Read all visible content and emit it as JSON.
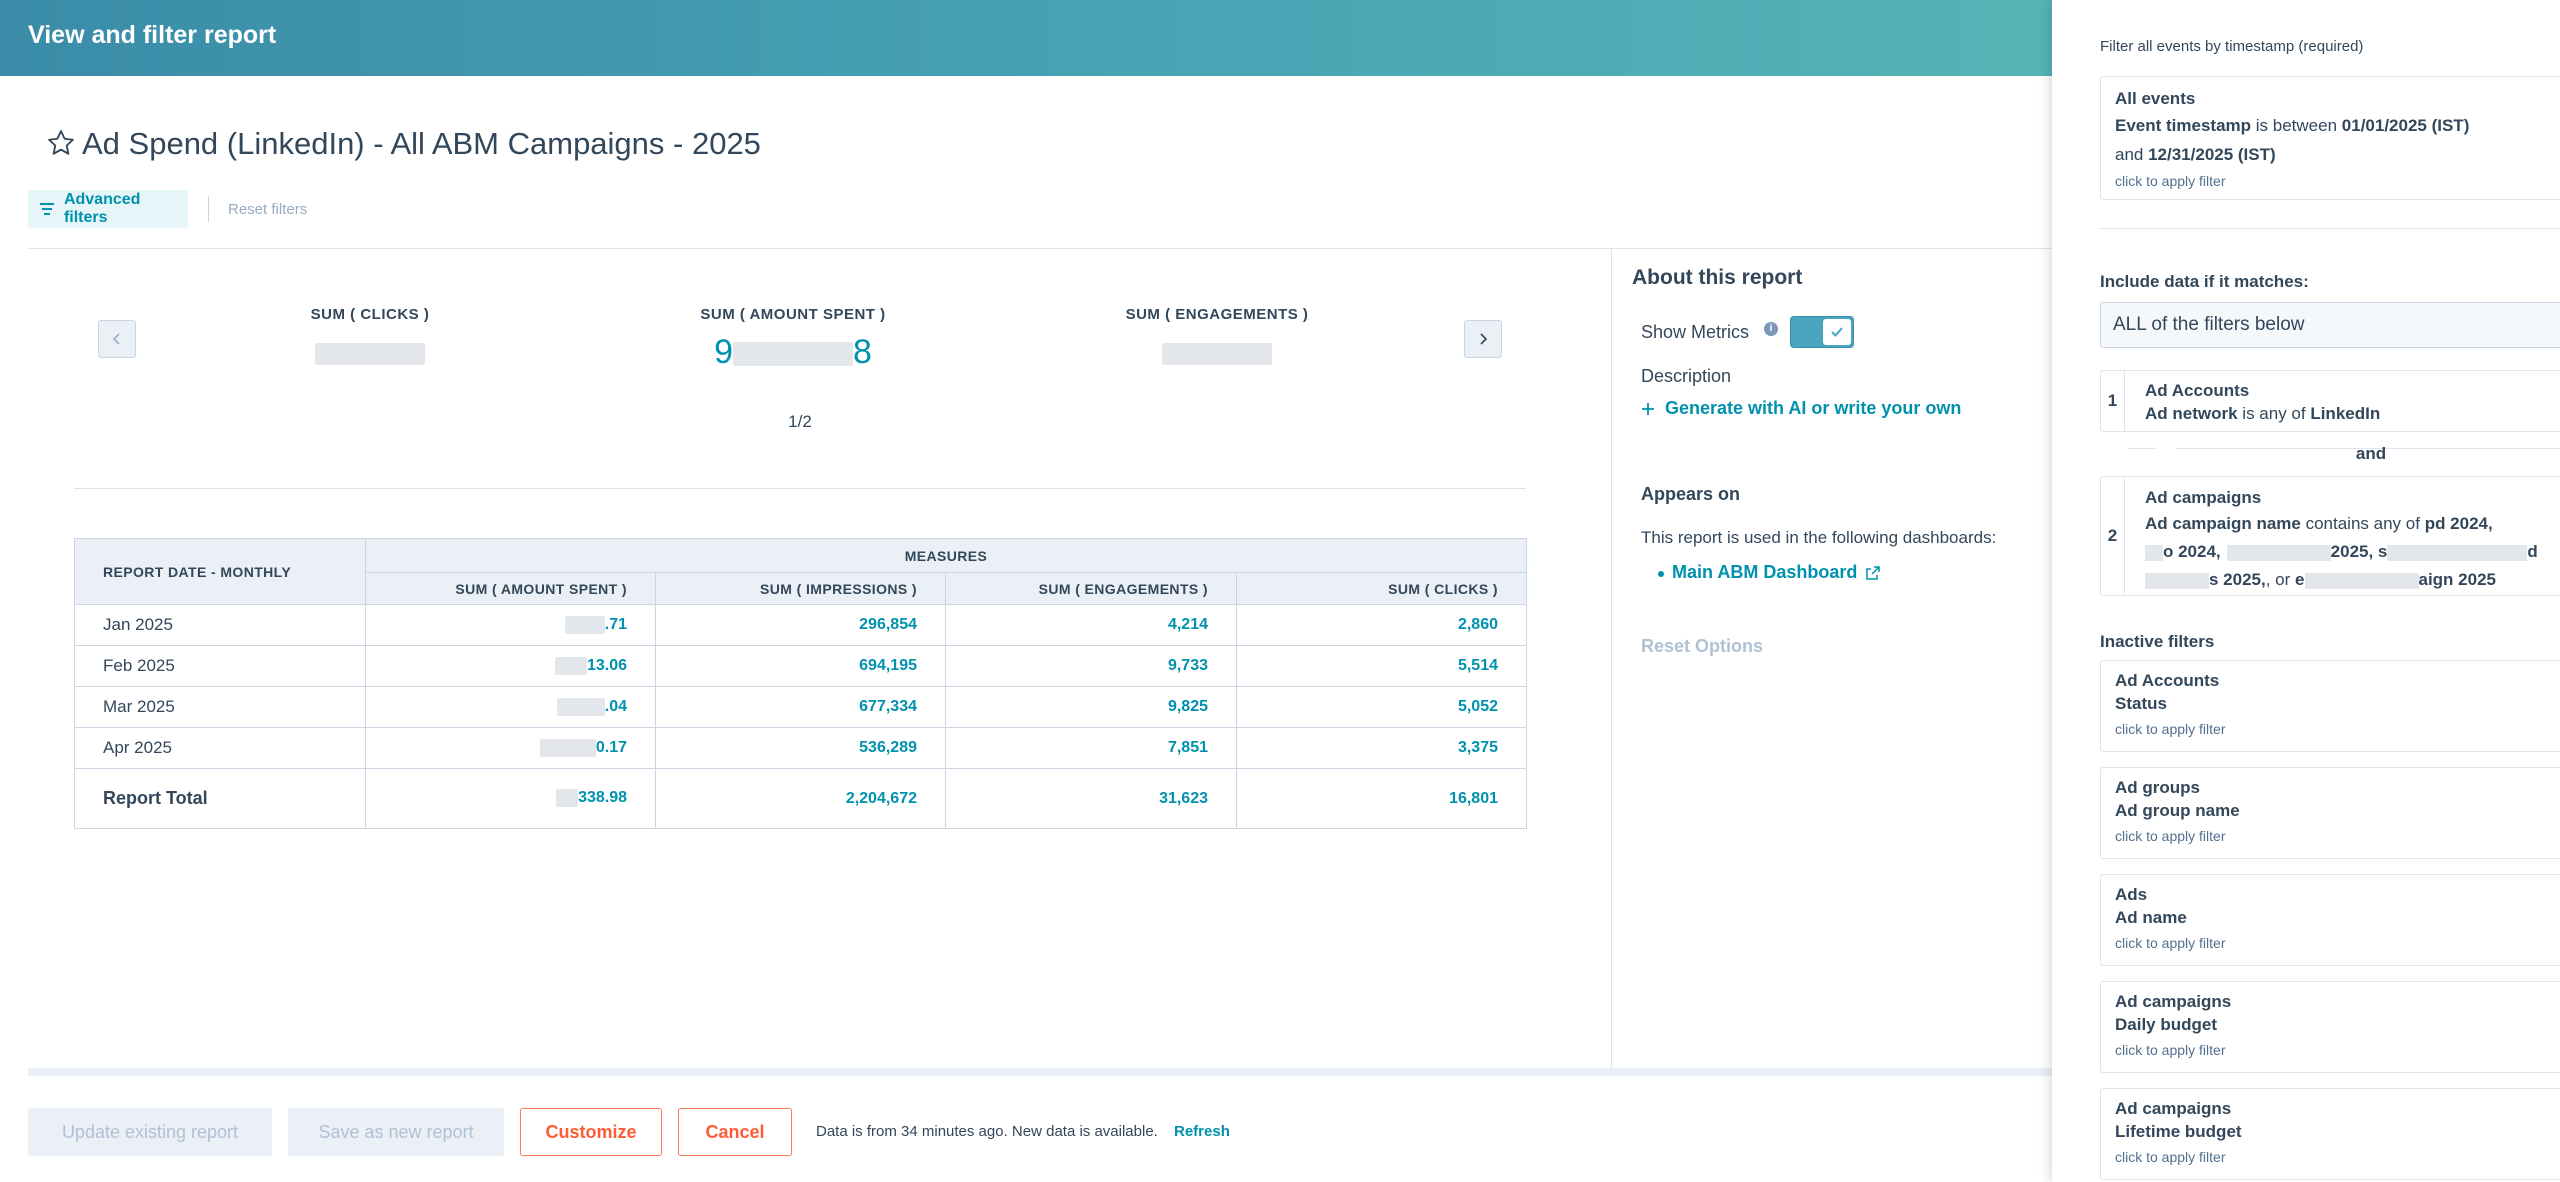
{
  "header": {
    "title": "View and filter report"
  },
  "report": {
    "title": "Ad Spend (LinkedIn) - All ABM Campaigns - 2025",
    "advanced_filters": "Advanced filters",
    "reset_filters": "Reset filters"
  },
  "kpis": [
    {
      "label": "SUM ( CLICKS )"
    },
    {
      "label": "SUM ( AMOUNT SPENT )",
      "value_visible_prefix": "9",
      "value_visible_suffix": "8"
    },
    {
      "label": "SUM ( ENGAGEMENTS )"
    }
  ],
  "pager": "1/2",
  "table": {
    "group_header": "MEASURES",
    "row_header": "REPORT DATE - MONTHLY",
    "columns": [
      "SUM ( AMOUNT SPENT )",
      "SUM ( IMPRESSIONS )",
      "SUM ( ENGAGEMENTS )",
      "SUM ( CLICKS )"
    ],
    "rows": [
      {
        "label": "Jan 2025",
        "amount": ".71",
        "impressions": "296,854",
        "engagements": "4,214",
        "clicks": "2,860"
      },
      {
        "label": "Feb 2025",
        "amount": "13.06",
        "impressions": "694,195",
        "engagements": "9,733",
        "clicks": "5,514"
      },
      {
        "label": "Mar 2025",
        "amount": ".04",
        "impressions": "677,334",
        "engagements": "9,825",
        "clicks": "5,052"
      },
      {
        "label": "Apr 2025",
        "amount": "0.17",
        "impressions": "536,289",
        "engagements": "7,851",
        "clicks": "3,375"
      }
    ],
    "total": {
      "label": "Report Total",
      "amount": "338.98",
      "impressions": "2,204,672",
      "engagements": "31,623",
      "clicks": "16,801"
    }
  },
  "about": {
    "title": "About this report",
    "show_metrics": "Show Metrics",
    "show_metrics_on": true,
    "description_label": "Description",
    "generate": "Generate with AI or write your own",
    "appears_on": "Appears on",
    "appears_text": "This report is used in the following dashboards:",
    "dashboard_link": "Main ABM Dashboard",
    "reset_options": "Reset Options"
  },
  "footer": {
    "update": "Update existing report",
    "save_new": "Save as new report",
    "customize": "Customize",
    "cancel": "Cancel",
    "note": "Data is from 34 minutes ago. New data is available.",
    "refresh": "Refresh"
  },
  "filters": {
    "timestamp_label": "Filter all events by timestamp (required)",
    "timestamp_card": {
      "title": "All events",
      "field": "Event timestamp",
      "op": " is between ",
      "start": "01/01/2025 (IST)",
      "and": "and ",
      "end": "12/31/2025 (IST)",
      "apply": "click to apply filter"
    },
    "include_label": "Include data if it matches:",
    "match_option": "ALL of the filters below",
    "active": [
      {
        "num": "1",
        "object": "Ad Accounts",
        "field": "Ad network",
        "op": " is any of ",
        "value": "LinkedIn"
      },
      {
        "num": "2",
        "object": "Ad campaigns",
        "field": "Ad campaign name",
        "op": " contains any of ",
        "value": "pd 2024,"
      }
    ],
    "active2_lines": {
      "l2a": "o 2024,",
      "l2b": "2025, s",
      "l2c": "d",
      "l3a": "s 2025,",
      "l3b": ", or ",
      "l3c": "e",
      "l3d": "aign 2025"
    },
    "connector": "and",
    "inactive_label": "Inactive filters",
    "inactive": [
      {
        "object": "Ad Accounts",
        "field": "Status",
        "apply": "click to apply filter"
      },
      {
        "object": "Ad groups",
        "field": "Ad group name",
        "apply": "click to apply filter"
      },
      {
        "object": "Ads",
        "field": "Ad name",
        "apply": "click to apply filter"
      },
      {
        "object": "Ad campaigns",
        "field": "Daily budget",
        "apply": "click to apply filter"
      },
      {
        "object": "Ad campaigns",
        "field": "Lifetime budget",
        "apply": "click to apply filter"
      }
    ]
  },
  "colors": {
    "accent": "#0091ae",
    "header_start": "#3a8ca8",
    "header_end": "#5ebdb8",
    "warning": "#ff5c35"
  }
}
